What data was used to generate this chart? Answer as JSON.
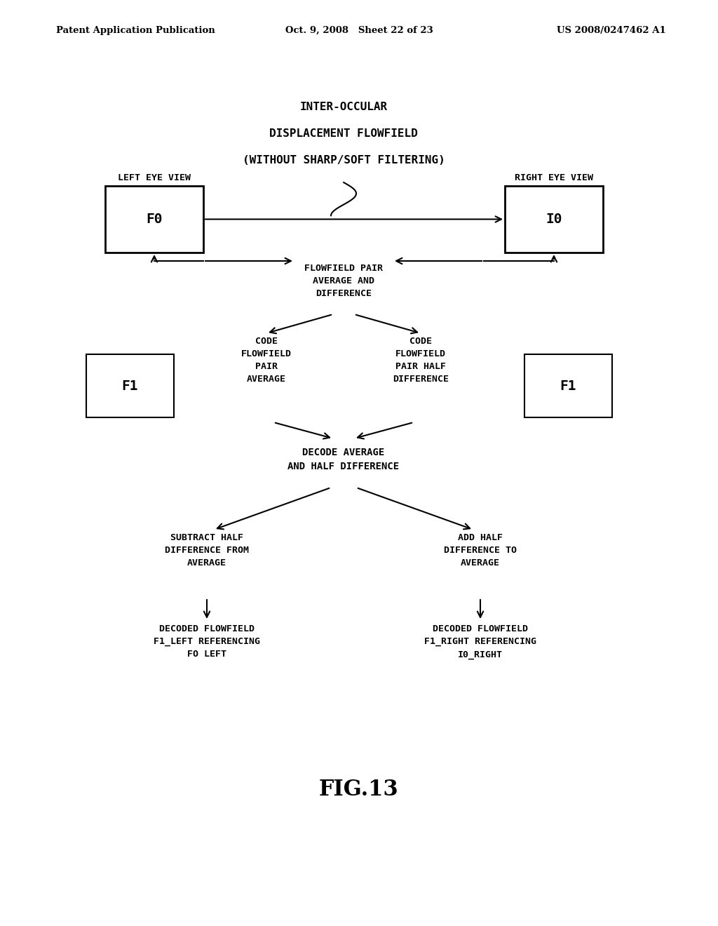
{
  "bg_color": "#ffffff",
  "text_color": "#000000",
  "header_left": "Patent Application Publication",
  "header_mid": "Oct. 9, 2008   Sheet 22 of 23",
  "header_right": "US 2008/0247462 A1",
  "figure_label": "FIG.13",
  "title_line1": "INTER-OCCULAR",
  "title_line2": "DISPLACEMENT FLOWFIELD",
  "title_line3": "(WITHOUT SHARP/SOFT FILTERING)",
  "label_left_eye": "LEFT EYE VIEW",
  "label_right_eye": "RIGHT EYE VIEW",
  "box_F0_label": "F0",
  "box_I0_label": "I0",
  "box_F1_left_label": "F1",
  "box_F1_right_label": "F1",
  "flowfield_pair_text": "FLOWFIELD PAIR\nAVERAGE AND\nDIFFERENCE",
  "code_avg_text": "CODE\nFLOWFIELD\nPAIR\nAVERAGE",
  "code_diff_text": "CODE\nFLOWFIELD\nPAIR HALF\nDIFFERENCE",
  "decode_text": "DECODE AVERAGE\nAND HALF DIFFERENCE",
  "subtract_text": "SUBTRACT HALF\nDIFFERENCE FROM\nAVERAGE",
  "add_text": "ADD HALF\nDIFFERENCE TO\nAVERAGE",
  "decoded_left_text": "DECODED FLOWFIELD\nF1_LEFT REFERENCING\nFO LEFT",
  "decoded_right_text": "DECODED FLOWFIELD\nF1_RIGHT REFERENCING\nI0_RIGHT",
  "font_size_header": 9.5,
  "font_size_title": 11.5,
  "font_size_labels": 10,
  "font_size_box": 14,
  "font_size_body": 9.5,
  "font_size_fig": 22
}
